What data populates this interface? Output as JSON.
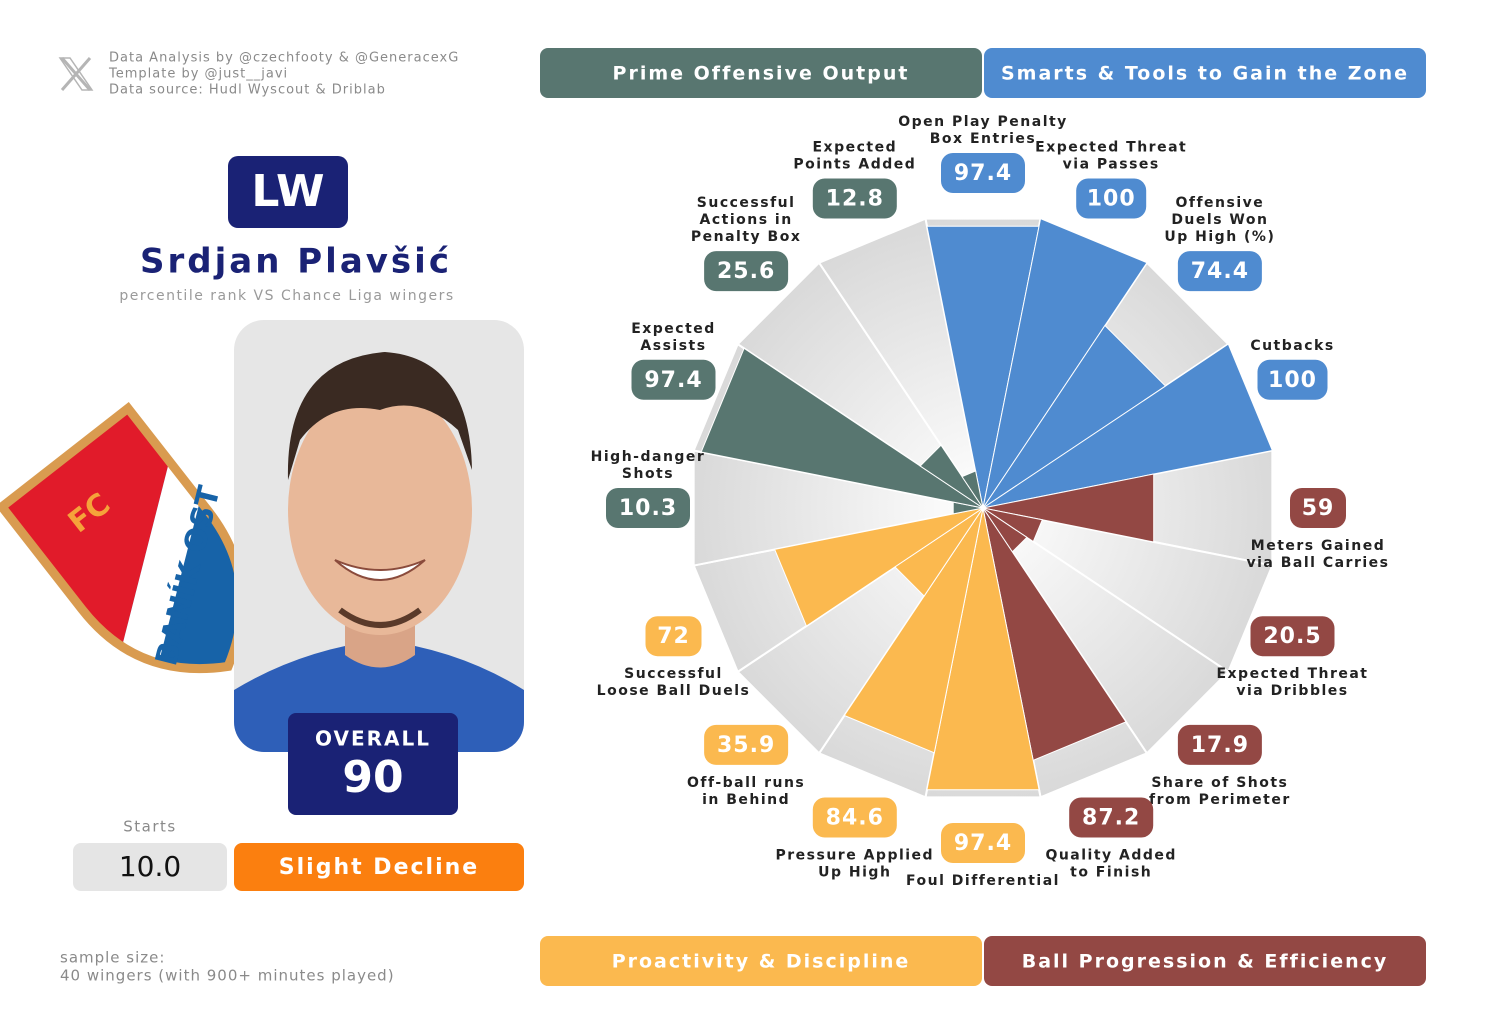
{
  "header": {
    "credits": [
      "Data Analysis by @czechfooty & @GeneracexG",
      "Template by @just__javi",
      "Data source: Hudl Wyscout & Driblab"
    ]
  },
  "player": {
    "position": "LW",
    "name": "Srdjan Plavšić",
    "subtitle": "percentile rank VS Chance Liga wingers",
    "overall_label": "OVERALL",
    "overall": 90,
    "starts_label": "Starts",
    "starts": "10.0",
    "trend": "Slight Decline"
  },
  "club_logo": {
    "top": "FC",
    "band": "BANÍK OST"
  },
  "footer": [
    "sample size:",
    "40 wingers (with 900+ minutes played)"
  ],
  "chart_data": {
    "type": "polar_bar",
    "rlim": [
      0,
      100
    ],
    "series": [
      {
        "name": "Smarts & Tools to Gain the Zone",
        "color": "#4f8bd0",
        "categories": [
          "Open Play Penalty\nBox Entries",
          "Expected Threat\nvia Passes",
          "Offensive\nDuels Won\nUp High (%)",
          "Cutbacks"
        ],
        "values": [
          97.4,
          100,
          74.4,
          100
        ]
      },
      {
        "name": "Ball Progression & Efficiency",
        "color": "#934844",
        "categories": [
          "Meters Gained\nvia Ball Carries",
          "Expected Threat\nvia Dribbles",
          "Share of Shots\nfrom Perimeter",
          "Quality Added\nto Finish"
        ],
        "values": [
          59,
          20.5,
          17.9,
          87.2
        ]
      },
      {
        "name": "Proactivity & Discipline",
        "color": "#fbb94f",
        "categories": [
          "Foul Differential",
          "Pressure Applied\nUp High",
          "Off-ball runs\nin Behind",
          "Successful\nLoose Ball Duels"
        ],
        "values": [
          97.4,
          84.6,
          35.9,
          72
        ]
      },
      {
        "name": "Prime Offensive Output",
        "color": "#587670",
        "categories": [
          "High-danger\nShots",
          "Expected\nAssists",
          "Successful\nActions in\nPenalty Box",
          "Expected\nPoints Added"
        ],
        "values": [
          10.3,
          97.4,
          25.6,
          12.8
        ]
      }
    ]
  }
}
